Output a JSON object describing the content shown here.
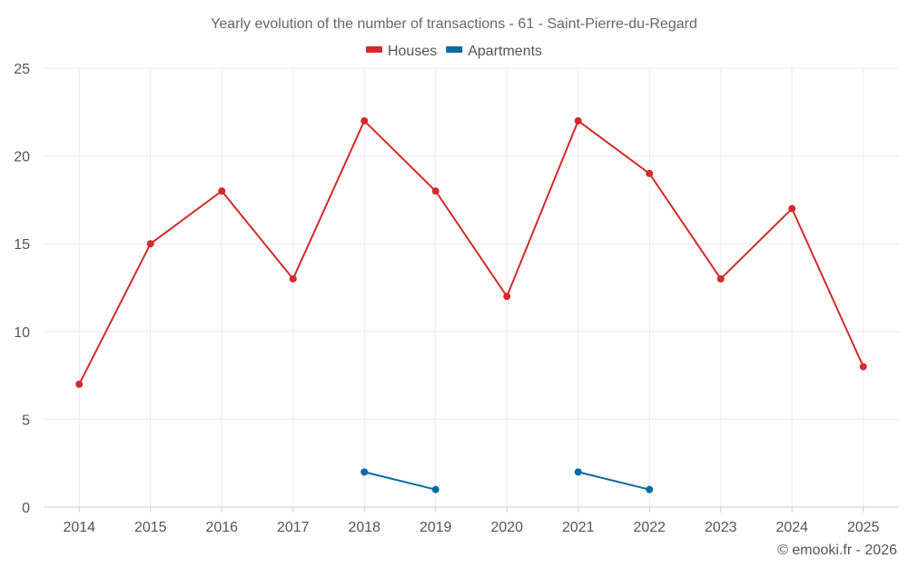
{
  "chart_data": {
    "type": "line",
    "title": "Yearly evolution of the number of transactions - 61 - Saint-Pierre-du-Regard",
    "categories": [
      "2014",
      "2015",
      "2016",
      "2017",
      "2018",
      "2019",
      "2020",
      "2021",
      "2022",
      "2023",
      "2024",
      "2025"
    ],
    "ylim": [
      0,
      25
    ],
    "yticks": [
      0,
      5,
      10,
      15,
      20,
      25
    ],
    "grid": true,
    "legend_position": "top-center",
    "series": [
      {
        "name": "Houses",
        "color": "#d32b2b",
        "values": [
          7,
          15,
          18,
          13,
          22,
          18,
          12,
          22,
          19,
          13,
          17,
          8
        ]
      },
      {
        "name": "Apartments",
        "color": "#0b6aa2",
        "values": [
          null,
          null,
          null,
          null,
          2,
          1,
          null,
          2,
          1,
          null,
          null,
          null
        ]
      }
    ],
    "credit": "© emooki.fr - 2026"
  }
}
